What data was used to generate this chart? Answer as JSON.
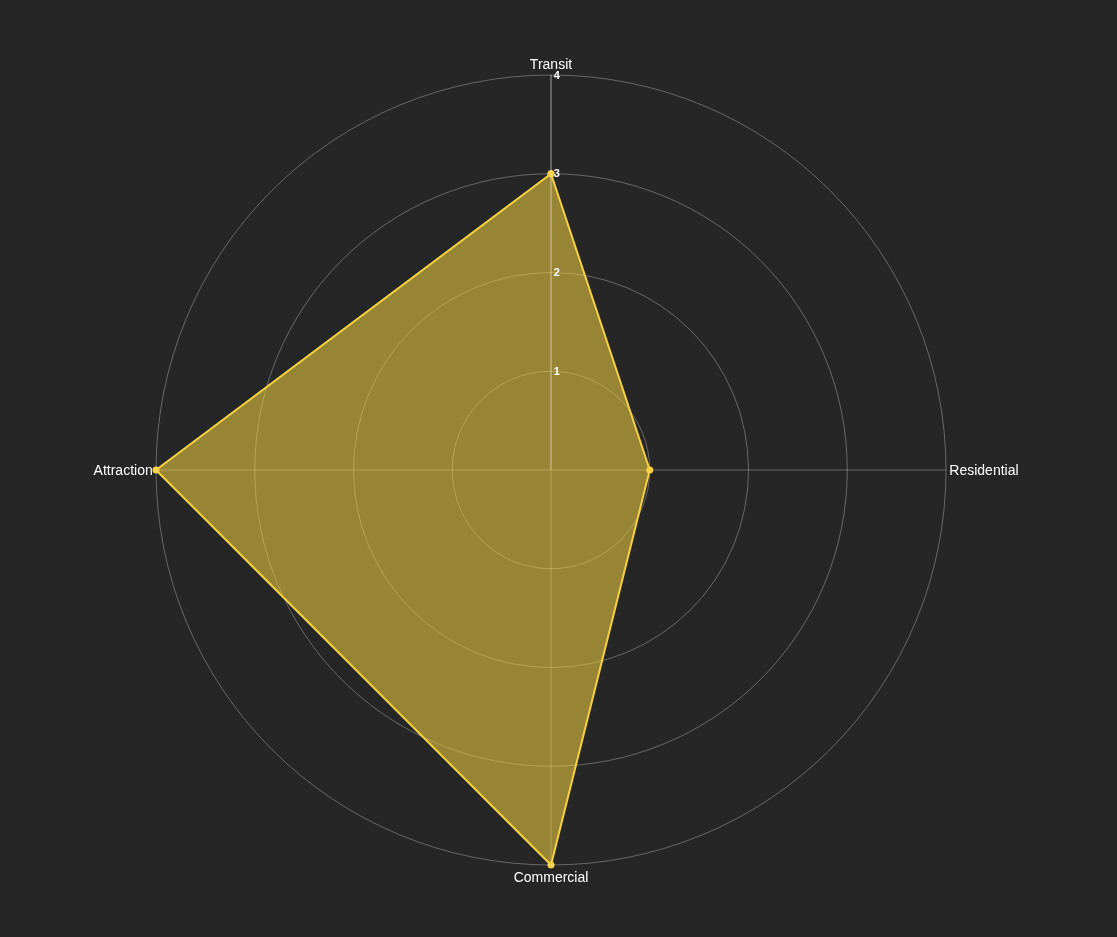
{
  "chart_data": {
    "type": "radar",
    "categories": [
      "Transit",
      "Residential",
      "Commercial",
      "Attraction"
    ],
    "series": [
      {
        "color": "#f5d142",
        "values": [
          3,
          1,
          4,
          4
        ]
      }
    ],
    "ylim": [
      0,
      4
    ],
    "yticks": [
      1,
      2,
      3,
      4
    ],
    "grid": true,
    "marker": "circle",
    "line_style": "solid"
  }
}
